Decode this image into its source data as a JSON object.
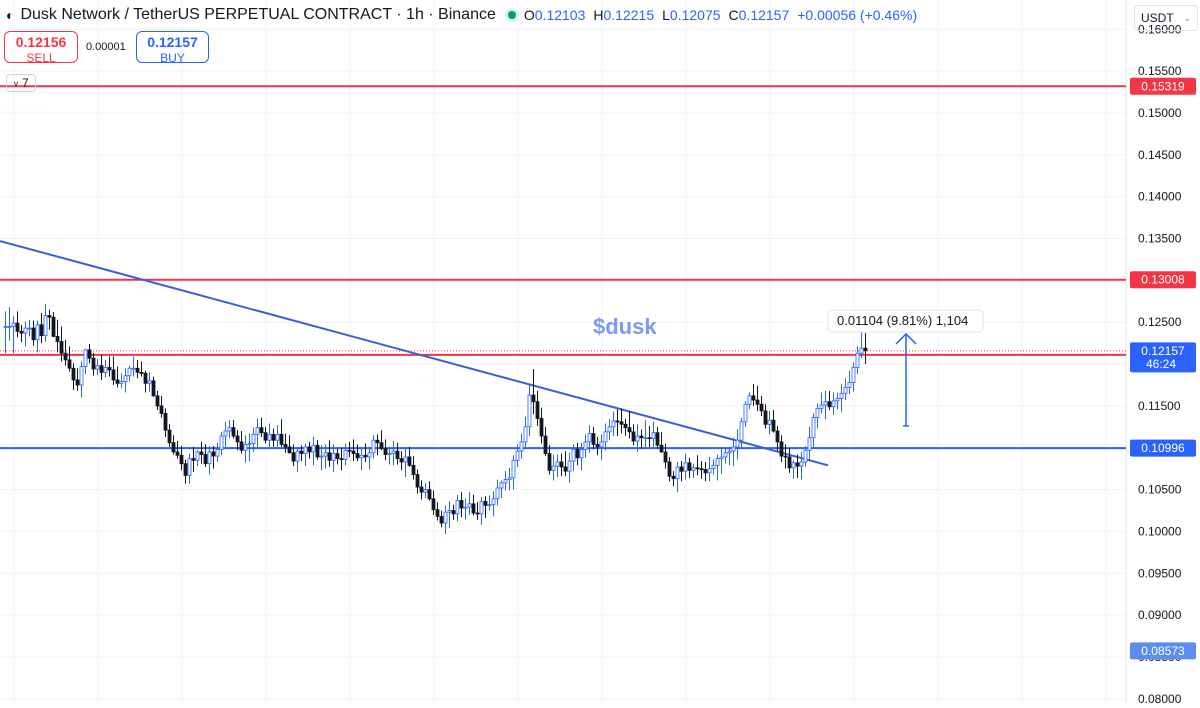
{
  "header": {
    "symbol_title": "Dusk Network / TetherUS PERPETUAL CONTRACT · 1h · Binance",
    "ohlc": [
      {
        "key": "O",
        "value": "0.12103"
      },
      {
        "key": "H",
        "value": "0.12215"
      },
      {
        "key": "L",
        "value": "0.12075"
      },
      {
        "key": "C",
        "value": "0.12157"
      }
    ],
    "change": "+0.00056 (+0.46%)"
  },
  "trade": {
    "sell_price": "0.12156",
    "sell_label": "SELL",
    "spread": "0.00001",
    "buy_price": "0.12157",
    "buy_label": "BUY"
  },
  "indicator_count": "7",
  "currency_selector": "USDT",
  "chart_data": {
    "type": "candlestick",
    "annotation_text": "$dusk",
    "measure_label": "0.01104 (9.81%) 1,104",
    "ylim": [
      0.0795,
      0.1635
    ],
    "y_ticks": [
      "0.16000",
      "0.15500",
      "0.15000",
      "0.14500",
      "0.14000",
      "0.13500",
      "0.13000",
      "0.12500",
      "0.12000",
      "0.11500",
      "0.11000",
      "0.10500",
      "0.10000",
      "0.09500",
      "0.09000",
      "0.08500",
      "0.08000"
    ],
    "horizontal_lines": [
      {
        "value": 0.15319,
        "label": "0.15319",
        "color": "#f23645"
      },
      {
        "value": 0.13008,
        "label": "0.13008",
        "color": "#f23645"
      },
      {
        "value": 0.1211,
        "label": "0.12110",
        "color": "#f23645"
      },
      {
        "value": 0.10996,
        "label": "0.10996",
        "color": "#2962ff"
      }
    ],
    "price_labels": [
      {
        "value": 0.12157,
        "label": "0.12157",
        "sub": "46:24",
        "color": "#2962ff"
      },
      {
        "value": 0.08573,
        "label": "0.08573",
        "color": "#5b8def"
      }
    ],
    "trendline": {
      "from": {
        "bar": 0,
        "price": 0.1347
      },
      "to": {
        "bar": 205,
        "price": 0.1079
      }
    },
    "measure_arrow": {
      "bar": 225,
      "from": 0.1126,
      "to": 0.1236
    },
    "candles": [
      [
        0.1245,
        0.1263,
        0.1213,
        0.1245
      ],
      [
        0.1245,
        0.1268,
        0.1228,
        0.1245
      ],
      [
        0.1245,
        0.1257,
        0.1213,
        0.1249
      ],
      [
        0.1249,
        0.1263,
        0.1232,
        0.1239
      ],
      [
        0.1239,
        0.1247,
        0.1226,
        0.1237
      ],
      [
        0.1237,
        0.1251,
        0.1221,
        0.1243
      ],
      [
        0.1243,
        0.1253,
        0.1233,
        0.1243
      ],
      [
        0.1243,
        0.1252,
        0.1222,
        0.1229
      ],
      [
        0.1229,
        0.1252,
        0.1214,
        0.1247
      ],
      [
        0.1247,
        0.1261,
        0.1225,
        0.1234
      ],
      [
        0.1234,
        0.1272,
        0.1227,
        0.1258
      ],
      [
        0.1258,
        0.1265,
        0.1241,
        0.1256
      ],
      [
        0.1256,
        0.1262,
        0.1232,
        0.1233
      ],
      [
        0.1233,
        0.1253,
        0.1214,
        0.1227
      ],
      [
        0.1227,
        0.1245,
        0.1203,
        0.1213
      ],
      [
        0.1213,
        0.1229,
        0.1198,
        0.1205
      ],
      [
        0.1205,
        0.1221,
        0.1191,
        0.1195
      ],
      [
        0.1195,
        0.1201,
        0.1169,
        0.1181
      ],
      [
        0.1181,
        0.1195,
        0.1168,
        0.1175
      ],
      [
        0.1175,
        0.1203,
        0.116,
        0.1197
      ],
      [
        0.1197,
        0.1218,
        0.1188,
        0.1217
      ],
      [
        0.1217,
        0.1224,
        0.1201,
        0.1207
      ],
      [
        0.1207,
        0.1213,
        0.1186,
        0.1194
      ],
      [
        0.1194,
        0.1206,
        0.1187,
        0.1198
      ],
      [
        0.1198,
        0.1211,
        0.1181,
        0.119
      ],
      [
        0.119,
        0.1205,
        0.1184,
        0.1196
      ],
      [
        0.1196,
        0.1209,
        0.1185,
        0.1193
      ],
      [
        0.1193,
        0.1209,
        0.1175,
        0.1181
      ],
      [
        0.1181,
        0.1197,
        0.1172,
        0.1177
      ],
      [
        0.1177,
        0.1189,
        0.1171,
        0.1179
      ],
      [
        0.1179,
        0.1195,
        0.1166,
        0.1186
      ],
      [
        0.1186,
        0.1198,
        0.1179,
        0.1195
      ],
      [
        0.1195,
        0.1209,
        0.1185,
        0.1195
      ],
      [
        0.1195,
        0.1205,
        0.1183,
        0.119
      ],
      [
        0.119,
        0.1203,
        0.1185,
        0.1189
      ],
      [
        0.1189,
        0.1192,
        0.1166,
        0.1177
      ],
      [
        0.1177,
        0.119,
        0.1167,
        0.118
      ],
      [
        0.118,
        0.1185,
        0.1161,
        0.1162
      ],
      [
        0.1162,
        0.1168,
        0.1145,
        0.115
      ],
      [
        0.115,
        0.1162,
        0.1136,
        0.1141
      ],
      [
        0.1141,
        0.1147,
        0.1113,
        0.1121
      ],
      [
        0.1121,
        0.1128,
        0.1101,
        0.1106
      ],
      [
        0.1106,
        0.1115,
        0.1092,
        0.1095
      ],
      [
        0.1095,
        0.1108,
        0.1087,
        0.1091
      ],
      [
        0.1091,
        0.1102,
        0.1073,
        0.1081
      ],
      [
        0.1081,
        0.1086,
        0.1057,
        0.1067
      ],
      [
        0.1067,
        0.1093,
        0.1057,
        0.1087
      ],
      [
        0.1087,
        0.1101,
        0.1071,
        0.1085
      ],
      [
        0.1085,
        0.1097,
        0.1078,
        0.1095
      ],
      [
        0.1095,
        0.1107,
        0.1081,
        0.1092
      ],
      [
        0.1092,
        0.1104,
        0.1077,
        0.1081
      ],
      [
        0.1081,
        0.1102,
        0.1068,
        0.1095
      ],
      [
        0.1095,
        0.1102,
        0.1075,
        0.109
      ],
      [
        0.109,
        0.1106,
        0.1083,
        0.1098
      ],
      [
        0.1098,
        0.1119,
        0.1091,
        0.1114
      ],
      [
        0.1114,
        0.1131,
        0.1101,
        0.112
      ],
      [
        0.112,
        0.1133,
        0.1111,
        0.1124
      ],
      [
        0.1124,
        0.1133,
        0.1111,
        0.1114
      ],
      [
        0.1114,
        0.1121,
        0.1097,
        0.1107
      ],
      [
        0.1107,
        0.112,
        0.1093,
        0.1097
      ],
      [
        0.1097,
        0.1115,
        0.1082,
        0.1104
      ],
      [
        0.1104,
        0.1117,
        0.1084,
        0.1105
      ],
      [
        0.1105,
        0.1124,
        0.1095,
        0.1116
      ],
      [
        0.1116,
        0.1135,
        0.11,
        0.1124
      ],
      [
        0.1124,
        0.1136,
        0.1113,
        0.1118
      ],
      [
        0.1118,
        0.1125,
        0.1105,
        0.1109
      ],
      [
        0.1109,
        0.1129,
        0.1101,
        0.1116
      ],
      [
        0.1116,
        0.1123,
        0.1101,
        0.1109
      ],
      [
        0.1109,
        0.1127,
        0.1101,
        0.1116
      ],
      [
        0.1116,
        0.1134,
        0.1101,
        0.1104
      ],
      [
        0.1104,
        0.1117,
        0.1094,
        0.1101
      ],
      [
        0.1101,
        0.1115,
        0.1093,
        0.1094
      ],
      [
        0.1094,
        0.1104,
        0.1078,
        0.1084
      ],
      [
        0.1084,
        0.1101,
        0.1071,
        0.1096
      ],
      [
        0.1096,
        0.1103,
        0.1084,
        0.1093
      ],
      [
        0.1093,
        0.1105,
        0.1078,
        0.1101
      ],
      [
        0.1101,
        0.1107,
        0.1087,
        0.1095
      ],
      [
        0.1095,
        0.1113,
        0.1079,
        0.1103
      ],
      [
        0.1103,
        0.1109,
        0.1086,
        0.1089
      ],
      [
        0.1089,
        0.1103,
        0.1073,
        0.109
      ],
      [
        0.109,
        0.1104,
        0.1075,
        0.1094
      ],
      [
        0.1094,
        0.1109,
        0.1077,
        0.1085
      ],
      [
        0.1085,
        0.1104,
        0.1071,
        0.1093
      ],
      [
        0.1093,
        0.1099,
        0.108,
        0.1087
      ],
      [
        0.1087,
        0.11,
        0.1073,
        0.1086
      ],
      [
        0.1086,
        0.1105,
        0.1079,
        0.1097
      ],
      [
        0.1097,
        0.1107,
        0.1089,
        0.1096
      ],
      [
        0.1096,
        0.111,
        0.1084,
        0.1093
      ],
      [
        0.1093,
        0.1104,
        0.1084,
        0.1088
      ],
      [
        0.1088,
        0.1101,
        0.1073,
        0.1091
      ],
      [
        0.1091,
        0.1105,
        0.1083,
        0.1089
      ],
      [
        0.1089,
        0.1101,
        0.1074,
        0.1094
      ],
      [
        0.1094,
        0.1115,
        0.1087,
        0.1109
      ],
      [
        0.1109,
        0.1116,
        0.1091,
        0.1106
      ],
      [
        0.1106,
        0.1121,
        0.1097,
        0.1099
      ],
      [
        0.1099,
        0.111,
        0.1085,
        0.1092
      ],
      [
        0.1092,
        0.1101,
        0.108,
        0.1093
      ],
      [
        0.1093,
        0.1108,
        0.1079,
        0.1096
      ],
      [
        0.1096,
        0.1106,
        0.108,
        0.1087
      ],
      [
        0.1087,
        0.1096,
        0.1073,
        0.1083
      ],
      [
        0.1083,
        0.1099,
        0.1065,
        0.1089
      ],
      [
        0.1089,
        0.1101,
        0.1077,
        0.1079
      ],
      [
        0.1079,
        0.109,
        0.1062,
        0.1068
      ],
      [
        0.1068,
        0.1074,
        0.1045,
        0.1053
      ],
      [
        0.1053,
        0.1061,
        0.1038,
        0.1047
      ],
      [
        0.1047,
        0.1058,
        0.104,
        0.105
      ],
      [
        0.105,
        0.106,
        0.1037,
        0.1039
      ],
      [
        0.1039,
        0.1049,
        0.102,
        0.1026
      ],
      [
        0.1026,
        0.1035,
        0.1013,
        0.1018
      ],
      [
        0.1018,
        0.1025,
        0.1005,
        0.101
      ],
      [
        0.101,
        0.1031,
        0.0997,
        0.1023
      ],
      [
        0.1023,
        0.1036,
        0.1004,
        0.1025
      ],
      [
        0.1025,
        0.1032,
        0.1014,
        0.1021
      ],
      [
        0.1021,
        0.1044,
        0.1012,
        0.1037
      ],
      [
        0.1037,
        0.1047,
        0.1017,
        0.1028
      ],
      [
        0.1028,
        0.1039,
        0.1014,
        0.1029
      ],
      [
        0.1029,
        0.1047,
        0.102,
        0.1033
      ],
      [
        0.1033,
        0.1044,
        0.1019,
        0.1022
      ],
      [
        0.1022,
        0.1035,
        0.1014,
        0.1021
      ],
      [
        0.1021,
        0.1041,
        0.1008,
        0.1036
      ],
      [
        0.1036,
        0.1042,
        0.1016,
        0.1031
      ],
      [
        0.1031,
        0.1043,
        0.1025,
        0.1032
      ],
      [
        0.1032,
        0.1048,
        0.1018,
        0.1039
      ],
      [
        0.1039,
        0.1062,
        0.1031,
        0.1052
      ],
      [
        0.1052,
        0.1061,
        0.104,
        0.1058
      ],
      [
        0.1058,
        0.1072,
        0.1049,
        0.1062
      ],
      [
        0.1062,
        0.1076,
        0.1049,
        0.1064
      ],
      [
        0.1064,
        0.1091,
        0.105,
        0.1085
      ],
      [
        0.1085,
        0.1104,
        0.1077,
        0.1096
      ],
      [
        0.1096,
        0.1117,
        0.1087,
        0.1107
      ],
      [
        0.1107,
        0.1137,
        0.1101,
        0.1125
      ],
      [
        0.1125,
        0.1175,
        0.1114,
        0.1163
      ],
      [
        0.1163,
        0.1194,
        0.114,
        0.1155
      ],
      [
        0.1155,
        0.1168,
        0.1126,
        0.1135
      ],
      [
        0.1135,
        0.1148,
        0.1105,
        0.1114
      ],
      [
        0.1114,
        0.1125,
        0.109,
        0.1093
      ],
      [
        0.1093,
        0.1103,
        0.1068,
        0.1073
      ],
      [
        0.1073,
        0.1092,
        0.1061,
        0.1078
      ],
      [
        0.1078,
        0.1092,
        0.1065,
        0.1083
      ],
      [
        0.1083,
        0.1093,
        0.1066,
        0.1077
      ],
      [
        0.1077,
        0.1096,
        0.1066,
        0.1072
      ],
      [
        0.1072,
        0.1094,
        0.1058,
        0.1084
      ],
      [
        0.1084,
        0.1104,
        0.1072,
        0.1098
      ],
      [
        0.1098,
        0.1106,
        0.1079,
        0.1088
      ],
      [
        0.1088,
        0.1106,
        0.1073,
        0.1098
      ],
      [
        0.1098,
        0.1116,
        0.1088,
        0.1107
      ],
      [
        0.1107,
        0.1127,
        0.1094,
        0.1117
      ],
      [
        0.1117,
        0.1125,
        0.1098,
        0.1104
      ],
      [
        0.1104,
        0.1113,
        0.1091,
        0.1101
      ],
      [
        0.1101,
        0.1116,
        0.1085,
        0.1107
      ],
      [
        0.1107,
        0.1129,
        0.1097,
        0.1119
      ],
      [
        0.1119,
        0.1134,
        0.1109,
        0.1125
      ],
      [
        0.1125,
        0.1143,
        0.1114,
        0.1132
      ],
      [
        0.1132,
        0.1146,
        0.1114,
        0.1131
      ],
      [
        0.1131,
        0.1147,
        0.1117,
        0.1128
      ],
      [
        0.1128,
        0.1135,
        0.1114,
        0.1124
      ],
      [
        0.1124,
        0.1144,
        0.1111,
        0.1119
      ],
      [
        0.1119,
        0.1128,
        0.1103,
        0.1108
      ],
      [
        0.1108,
        0.1128,
        0.1095,
        0.1114
      ],
      [
        0.1114,
        0.1122,
        0.1099,
        0.1112
      ],
      [
        0.1112,
        0.1133,
        0.11,
        0.1112
      ],
      [
        0.1112,
        0.1126,
        0.1101,
        0.1111
      ],
      [
        0.1111,
        0.1131,
        0.1101,
        0.1118
      ],
      [
        0.1118,
        0.1125,
        0.1099,
        0.1103
      ],
      [
        0.1103,
        0.1119,
        0.1094,
        0.1095
      ],
      [
        0.1095,
        0.1105,
        0.1075,
        0.1083
      ],
      [
        0.1083,
        0.1089,
        0.106,
        0.1066
      ],
      [
        0.1066,
        0.1072,
        0.1054,
        0.1063
      ],
      [
        0.1063,
        0.1083,
        0.1047,
        0.1077
      ],
      [
        0.1077,
        0.1084,
        0.106,
        0.1072
      ],
      [
        0.1072,
        0.1093,
        0.1062,
        0.1082
      ],
      [
        0.1082,
        0.1088,
        0.1064,
        0.1073
      ],
      [
        0.1073,
        0.1081,
        0.1064,
        0.1076
      ],
      [
        0.1076,
        0.1091,
        0.1067,
        0.1075
      ],
      [
        0.1075,
        0.1084,
        0.1063,
        0.1074
      ],
      [
        0.1074,
        0.1083,
        0.106,
        0.107
      ],
      [
        0.107,
        0.1089,
        0.106,
        0.1075
      ],
      [
        0.1075,
        0.1086,
        0.1068,
        0.1079
      ],
      [
        0.1079,
        0.1092,
        0.1061,
        0.1087
      ],
      [
        0.1087,
        0.1101,
        0.1069,
        0.1089
      ],
      [
        0.1089,
        0.1099,
        0.1081,
        0.1094
      ],
      [
        0.1094,
        0.1101,
        0.1079,
        0.1096
      ],
      [
        0.1096,
        0.1112,
        0.1078,
        0.1101
      ],
      [
        0.1101,
        0.1122,
        0.1086,
        0.1109
      ],
      [
        0.1109,
        0.1136,
        0.1101,
        0.1131
      ],
      [
        0.1131,
        0.1156,
        0.1125,
        0.1152
      ],
      [
        0.1152,
        0.1166,
        0.1146,
        0.1162
      ],
      [
        0.1162,
        0.1176,
        0.115,
        0.1157
      ],
      [
        0.1157,
        0.1174,
        0.1144,
        0.1152
      ],
      [
        0.1152,
        0.1162,
        0.1138,
        0.1144
      ],
      [
        0.1144,
        0.1152,
        0.1123,
        0.1128
      ],
      [
        0.1128,
        0.1144,
        0.1116,
        0.1133
      ],
      [
        0.1133,
        0.1145,
        0.1118,
        0.112
      ],
      [
        0.112,
        0.1126,
        0.1096,
        0.1107
      ],
      [
        0.1107,
        0.1115,
        0.1083,
        0.109
      ],
      [
        0.109,
        0.1104,
        0.1075,
        0.1089
      ],
      [
        0.1089,
        0.11,
        0.107,
        0.1076
      ],
      [
        0.1076,
        0.1085,
        0.1063,
        0.1082
      ],
      [
        0.1082,
        0.1092,
        0.1064,
        0.1078
      ],
      [
        0.1078,
        0.1095,
        0.1062,
        0.1083
      ],
      [
        0.1083,
        0.1102,
        0.1077,
        0.1097
      ],
      [
        0.1097,
        0.1125,
        0.1085,
        0.1112
      ],
      [
        0.1112,
        0.1141,
        0.11,
        0.1136
      ],
      [
        0.1136,
        0.1153,
        0.1123,
        0.1147
      ],
      [
        0.1147,
        0.1166,
        0.1141,
        0.1151
      ],
      [
        0.1151,
        0.1168,
        0.1134,
        0.1155
      ],
      [
        0.1155,
        0.1168,
        0.1145,
        0.1149
      ],
      [
        0.1149,
        0.1166,
        0.1139,
        0.1156
      ],
      [
        0.1156,
        0.1166,
        0.1146,
        0.1159
      ],
      [
        0.1159,
        0.1176,
        0.1143,
        0.1165
      ],
      [
        0.1165,
        0.1183,
        0.1157,
        0.1172
      ],
      [
        0.1172,
        0.1192,
        0.1164,
        0.1178
      ],
      [
        0.1178,
        0.1202,
        0.1167,
        0.1196
      ],
      [
        0.1196,
        0.1221,
        0.1188,
        0.1213
      ],
      [
        0.1213,
        0.124,
        0.1207,
        0.1219
      ],
      [
        0.1219,
        0.1237,
        0.12,
        0.1216
      ]
    ]
  }
}
